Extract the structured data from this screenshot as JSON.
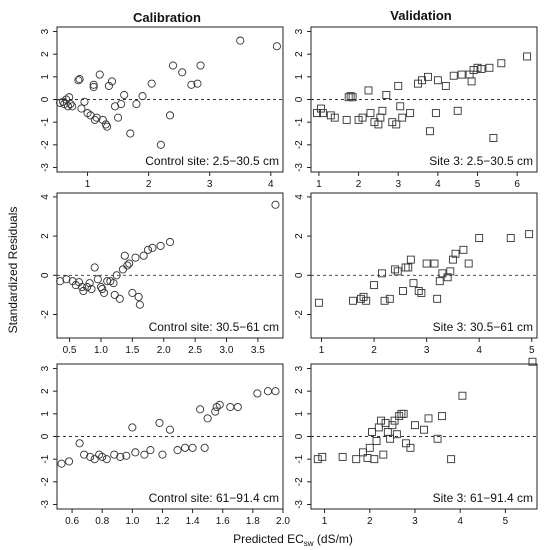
{
  "column_titles": [
    "Calibration",
    "Validation"
  ],
  "xlabel": {
    "prefix": "Predicted EC",
    "sub": "sw",
    "suffix": " (dS/m)"
  },
  "ylabel": "Standardized Residuals",
  "chart_data": [
    {
      "type": "scatter",
      "label": "Control site: 2.5−30.5 cm",
      "marker": "circle",
      "xlim": [
        0.5,
        4.2
      ],
      "ylim": [
        -3.2,
        3.2
      ],
      "xticks": [
        1,
        2,
        3,
        4
      ],
      "yticks": [
        -3,
        -2,
        -1,
        0,
        1,
        2,
        3
      ],
      "points": [
        [
          0.55,
          -0.15
        ],
        [
          0.6,
          -0.1
        ],
        [
          0.62,
          -0.2
        ],
        [
          0.65,
          0.0
        ],
        [
          0.68,
          -0.3
        ],
        [
          0.7,
          0.1
        ],
        [
          0.72,
          -0.2
        ],
        [
          0.75,
          -0.3
        ],
        [
          0.85,
          0.85
        ],
        [
          0.87,
          0.9
        ],
        [
          0.9,
          -0.4
        ],
        [
          0.95,
          -0.1
        ],
        [
          1.0,
          -0.6
        ],
        [
          1.05,
          -0.7
        ],
        [
          1.1,
          0.55
        ],
        [
          1.1,
          0.65
        ],
        [
          1.12,
          -0.9
        ],
        [
          1.15,
          -0.8
        ],
        [
          1.2,
          1.1
        ],
        [
          1.25,
          -0.9
        ],
        [
          1.3,
          -1.1
        ],
        [
          1.32,
          -1.2
        ],
        [
          1.35,
          0.6
        ],
        [
          1.4,
          0.8
        ],
        [
          1.45,
          -0.3
        ],
        [
          1.5,
          -0.8
        ],
        [
          1.55,
          -0.2
        ],
        [
          1.6,
          0.2
        ],
        [
          1.7,
          -1.5
        ],
        [
          1.8,
          -0.2
        ],
        [
          1.9,
          0.15
        ],
        [
          2.05,
          0.7
        ],
        [
          2.2,
          -2.0
        ],
        [
          2.35,
          -0.7
        ],
        [
          2.4,
          1.5
        ],
        [
          2.55,
          1.2
        ],
        [
          2.7,
          0.65
        ],
        [
          2.8,
          0.7
        ],
        [
          2.85,
          1.5
        ],
        [
          3.5,
          2.6
        ],
        [
          4.1,
          2.35
        ]
      ]
    },
    {
      "type": "scatter",
      "label": "Site 3: 2.5−30.5 cm",
      "marker": "square",
      "xlim": [
        0.8,
        6.5
      ],
      "ylim": [
        -3.2,
        3.2
      ],
      "xticks": [
        1,
        2,
        3,
        4,
        5,
        6
      ],
      "yticks": [
        -3,
        -2,
        -1,
        0,
        1,
        2,
        3
      ],
      "points": [
        [
          0.95,
          -0.6
        ],
        [
          1.05,
          -0.4
        ],
        [
          1.1,
          -0.6
        ],
        [
          1.3,
          -0.7
        ],
        [
          1.4,
          -0.8
        ],
        [
          1.7,
          -0.9
        ],
        [
          1.75,
          0.1
        ],
        [
          1.8,
          0.15
        ],
        [
          1.85,
          0.1
        ],
        [
          2.0,
          -0.9
        ],
        [
          2.1,
          -0.8
        ],
        [
          2.25,
          0.4
        ],
        [
          2.3,
          -0.6
        ],
        [
          2.4,
          -1.0
        ],
        [
          2.5,
          -1.1
        ],
        [
          2.55,
          -0.8
        ],
        [
          2.6,
          -0.5
        ],
        [
          2.7,
          0.2
        ],
        [
          2.85,
          -1.0
        ],
        [
          2.95,
          -1.1
        ],
        [
          3.0,
          0.6
        ],
        [
          3.05,
          -0.3
        ],
        [
          3.1,
          -0.8
        ],
        [
          3.3,
          -0.6
        ],
        [
          3.5,
          0.7
        ],
        [
          3.6,
          0.85
        ],
        [
          3.75,
          1.0
        ],
        [
          3.8,
          -1.4
        ],
        [
          3.95,
          -0.6
        ],
        [
          4.0,
          0.85
        ],
        [
          4.2,
          0.6
        ],
        [
          4.4,
          1.05
        ],
        [
          4.5,
          -0.5
        ],
        [
          4.6,
          1.1
        ],
        [
          4.8,
          1.1
        ],
        [
          4.85,
          0.8
        ],
        [
          4.9,
          1.3
        ],
        [
          5.0,
          1.4
        ],
        [
          5.1,
          1.35
        ],
        [
          5.3,
          1.4
        ],
        [
          5.4,
          -1.7
        ],
        [
          5.6,
          1.6
        ],
        [
          6.25,
          1.9
        ]
      ]
    },
    {
      "type": "scatter",
      "label": "Control site: 30.5−61 cm",
      "marker": "circle",
      "xlim": [
        0.3,
        3.9
      ],
      "ylim": [
        -3.2,
        4.2
      ],
      "xticks": [
        0.5,
        1.0,
        1.5,
        2.0,
        2.5,
        3.0,
        3.5
      ],
      "yticks": [
        -2,
        0,
        2,
        4
      ],
      "points": [
        [
          0.35,
          -0.3
        ],
        [
          0.45,
          -0.2
        ],
        [
          0.55,
          -0.3
        ],
        [
          0.6,
          -0.5
        ],
        [
          0.65,
          -0.35
        ],
        [
          0.7,
          -0.6
        ],
        [
          0.72,
          -0.8
        ],
        [
          0.78,
          -0.6
        ],
        [
          0.82,
          -0.4
        ],
        [
          0.85,
          -0.7
        ],
        [
          0.9,
          0.4
        ],
        [
          0.95,
          -0.2
        ],
        [
          1.0,
          -0.6
        ],
        [
          1.02,
          -0.7
        ],
        [
          1.05,
          -0.9
        ],
        [
          1.1,
          -0.3
        ],
        [
          1.15,
          -0.3
        ],
        [
          1.2,
          -0.4
        ],
        [
          1.22,
          -1.0
        ],
        [
          1.25,
          0.0
        ],
        [
          1.3,
          -1.2
        ],
        [
          1.35,
          0.3
        ],
        [
          1.38,
          1.0
        ],
        [
          1.42,
          0.5
        ],
        [
          1.45,
          0.6
        ],
        [
          1.5,
          -0.9
        ],
        [
          1.55,
          0.9
        ],
        [
          1.6,
          -1.1
        ],
        [
          1.62,
          -1.5
        ],
        [
          1.68,
          1.0
        ],
        [
          1.75,
          1.3
        ],
        [
          1.82,
          1.4
        ],
        [
          1.95,
          1.5
        ],
        [
          2.1,
          1.7
        ],
        [
          3.78,
          3.6
        ]
      ]
    },
    {
      "type": "scatter",
      "label": "Site 3: 30.5−61 cm",
      "marker": "square",
      "xlim": [
        0.8,
        5.1
      ],
      "ylim": [
        -3.2,
        4.2
      ],
      "xticks": [
        1,
        2,
        3,
        4,
        5
      ],
      "yticks": [
        -2,
        0,
        2,
        4
      ],
      "points": [
        [
          0.95,
          -1.4
        ],
        [
          1.6,
          -1.3
        ],
        [
          1.75,
          -1.2
        ],
        [
          1.8,
          -1.1
        ],
        [
          1.85,
          -1.3
        ],
        [
          2.0,
          -0.5
        ],
        [
          2.15,
          0.1
        ],
        [
          2.2,
          -1.3
        ],
        [
          2.3,
          -1.2
        ],
        [
          2.4,
          0.3
        ],
        [
          2.45,
          0.2
        ],
        [
          2.55,
          -0.8
        ],
        [
          2.6,
          0.4
        ],
        [
          2.65,
          0.4
        ],
        [
          2.7,
          0.8
        ],
        [
          2.75,
          -0.4
        ],
        [
          2.85,
          -0.8
        ],
        [
          2.9,
          -0.9
        ],
        [
          3.0,
          0.6
        ],
        [
          3.15,
          0.6
        ],
        [
          3.2,
          -1.2
        ],
        [
          3.25,
          -0.3
        ],
        [
          3.3,
          0.1
        ],
        [
          3.4,
          -0.1
        ],
        [
          3.45,
          0.2
        ],
        [
          3.5,
          0.8
        ],
        [
          3.55,
          1.1
        ],
        [
          3.7,
          1.3
        ],
        [
          3.8,
          0.6
        ],
        [
          4.0,
          1.9
        ],
        [
          4.6,
          1.9
        ],
        [
          4.95,
          2.1
        ]
      ]
    },
    {
      "type": "scatter",
      "label": "Control site: 61−91.4 cm",
      "marker": "circle",
      "xlim": [
        0.5,
        2.0
      ],
      "ylim": [
        -3.2,
        3.2
      ],
      "xticks": [
        0.6,
        0.8,
        1.0,
        1.2,
        1.4,
        1.6,
        1.8,
        2.0
      ],
      "yticks": [
        -3,
        -2,
        -1,
        0,
        1,
        2,
        3
      ],
      "points": [
        [
          0.53,
          -1.2
        ],
        [
          0.58,
          -1.1
        ],
        [
          0.65,
          -0.3
        ],
        [
          0.68,
          -0.8
        ],
        [
          0.72,
          -0.9
        ],
        [
          0.75,
          -1.0
        ],
        [
          0.78,
          -0.8
        ],
        [
          0.8,
          -0.9
        ],
        [
          0.83,
          -1.0
        ],
        [
          0.88,
          -0.8
        ],
        [
          0.92,
          -0.9
        ],
        [
          0.96,
          -0.85
        ],
        [
          1.0,
          0.4
        ],
        [
          1.02,
          -0.7
        ],
        [
          1.08,
          -0.8
        ],
        [
          1.12,
          -0.6
        ],
        [
          1.18,
          0.6
        ],
        [
          1.2,
          -0.8
        ],
        [
          1.25,
          0.3
        ],
        [
          1.3,
          -0.6
        ],
        [
          1.35,
          -0.5
        ],
        [
          1.4,
          -0.5
        ],
        [
          1.45,
          1.2
        ],
        [
          1.48,
          -0.5
        ],
        [
          1.5,
          0.8
        ],
        [
          1.55,
          1.1
        ],
        [
          1.56,
          1.3
        ],
        [
          1.58,
          1.4
        ],
        [
          1.65,
          1.3
        ],
        [
          1.7,
          1.3
        ],
        [
          1.83,
          1.9
        ],
        [
          1.9,
          2.0
        ],
        [
          1.95,
          2.0
        ]
      ]
    },
    {
      "type": "scatter",
      "label": "Site 3: 61−91.4 cm",
      "marker": "square",
      "xlim": [
        0.7,
        5.7
      ],
      "ylim": [
        -3.2,
        3.2
      ],
      "xticks": [
        1,
        2,
        3,
        4,
        5
      ],
      "yticks": [
        -3,
        -2,
        -1,
        0,
        1,
        2,
        3
      ],
      "points": [
        [
          0.85,
          -1.0
        ],
        [
          0.95,
          -0.9
        ],
        [
          1.4,
          -0.9
        ],
        [
          1.7,
          -1.0
        ],
        [
          1.85,
          -0.7
        ],
        [
          1.95,
          -0.95
        ],
        [
          2.0,
          -0.5
        ],
        [
          2.05,
          0.2
        ],
        [
          2.1,
          -1.0
        ],
        [
          2.15,
          -0.2
        ],
        [
          2.2,
          0.4
        ],
        [
          2.25,
          0.7
        ],
        [
          2.3,
          -0.8
        ],
        [
          2.35,
          0.6
        ],
        [
          2.4,
          0.2
        ],
        [
          2.45,
          -0.1
        ],
        [
          2.5,
          0.5
        ],
        [
          2.55,
          0.7
        ],
        [
          2.6,
          0.1
        ],
        [
          2.65,
          0.9
        ],
        [
          2.7,
          1.0
        ],
        [
          2.75,
          1.0
        ],
        [
          2.8,
          -0.3
        ],
        [
          2.9,
          -0.5
        ],
        [
          3.0,
          0.5
        ],
        [
          3.2,
          0.3
        ],
        [
          3.3,
          0.8
        ],
        [
          3.5,
          -0.1
        ],
        [
          3.6,
          0.9
        ],
        [
          3.8,
          -1.0
        ],
        [
          4.05,
          1.8
        ],
        [
          5.6,
          3.3
        ]
      ]
    }
  ]
}
